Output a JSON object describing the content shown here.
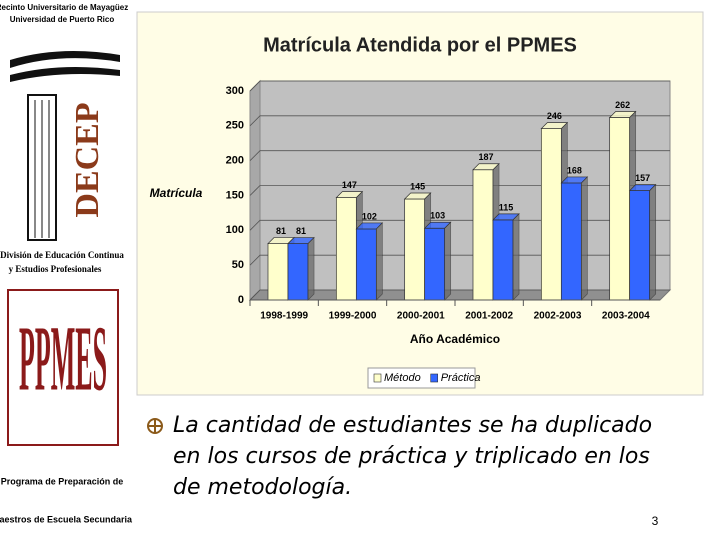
{
  "sidebar": {
    "campus": "Recinto Universitario de Mayagüez",
    "university": "Universidad de Puerto Rico",
    "decep_logo": "DECEP",
    "decep_name_1": "División de Educación Continua",
    "decep_name_2": "y Estudios Profesionales",
    "ppmes_logo": "PPMES",
    "ppmes_name_1": "Programa de Preparación de",
    "ppmes_name_2": "Maestros de Escuela Secundaria"
  },
  "slide": {
    "bullet": "La cantidad de estudiantes se ha duplicado en los cursos de práctica y triplicado en los de metodología.",
    "page_number": "3"
  },
  "chart_data": {
    "type": "bar",
    "title": "Matrícula Atendida por el PPMES",
    "y_label": "Matrícula",
    "x_label": "Año Académico",
    "categories": [
      "1998-1999",
      "1999-2000",
      "2000-2001",
      "2001-2002",
      "2002-2003",
      "2003-2004"
    ],
    "series": [
      {
        "name": "Método",
        "color": "#ffffcc",
        "values": [
          81,
          147,
          145,
          187,
          246,
          262
        ]
      },
      {
        "name": "Práctica",
        "color": "#3366ff",
        "values": [
          81,
          102,
          103,
          115,
          168,
          157
        ]
      }
    ],
    "ylim": [
      0,
      300
    ],
    "yticks": [
      0,
      50,
      100,
      150,
      200,
      250,
      300
    ],
    "grid": true,
    "legend": "bottom"
  }
}
